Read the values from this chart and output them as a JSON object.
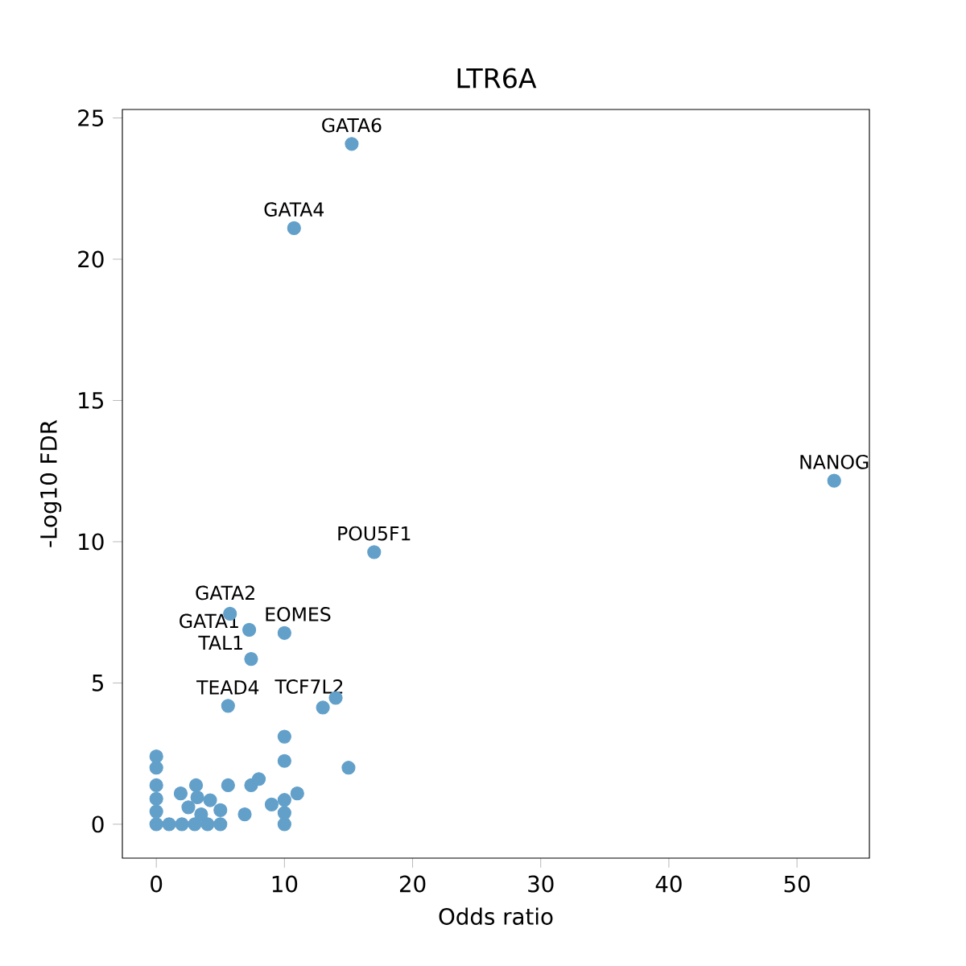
{
  "chart_data": {
    "type": "scatter",
    "title": "LTR6A",
    "xlabel": "Odds ratio",
    "ylabel": "-Log10 FDR",
    "color": "#62a0ca",
    "marker": "circle",
    "xlim": [
      -2.65,
      55.65
    ],
    "ylim": [
      -1.2,
      25.3
    ],
    "xticks": [
      0,
      10,
      20,
      30,
      40,
      50
    ],
    "yticks": [
      0,
      5,
      10,
      15,
      20,
      25
    ],
    "x": [
      15.25,
      10.75,
      52.9,
      17.0,
      5.75,
      7.25,
      10.0,
      7.4,
      5.6,
      13.0,
      14.0,
      10.0,
      10.0,
      15.0,
      0,
      0,
      0,
      0,
      0,
      0,
      1,
      2,
      3,
      4,
      5,
      2.5,
      3.2,
      3.5,
      4.2,
      5.0,
      1.9,
      3.1,
      5.6,
      6.9,
      7.4,
      8.0,
      9.0,
      10.0,
      10.0,
      10.0,
      11.0
    ],
    "values": [
      24.08,
      21.1,
      12.16,
      9.63,
      7.45,
      6.88,
      6.77,
      5.85,
      4.19,
      4.13,
      4.47,
      3.1,
      2.24,
      2.0,
      0,
      0.45,
      0.9,
      1.38,
      2.0,
      2.4,
      0,
      0,
      0,
      0,
      0,
      0.6,
      0.95,
      0.35,
      0.85,
      0.5,
      1.09,
      1.38,
      1.38,
      0.35,
      1.38,
      1.6,
      0.7,
      0,
      0.4,
      0.86,
      1.09
    ],
    "annotations": [
      {
        "text": "GATA6",
        "x": 15.25,
        "y": 24.08
      },
      {
        "text": "GATA4",
        "x": 10.75,
        "y": 21.1
      },
      {
        "text": "NANOG",
        "x": 52.9,
        "y": 12.16
      },
      {
        "text": "POU5F1",
        "x": 17.0,
        "y": 9.63
      },
      {
        "text": "GATA2",
        "x": 5.75,
        "y": 7.45
      },
      {
        "text": "GATA1",
        "x": 7.25,
        "y": 6.88
      },
      {
        "text": "EOMES",
        "x": 10.0,
        "y": 6.77
      },
      {
        "text": "TAL1",
        "x": 7.4,
        "y": 5.85
      },
      {
        "text": "TEAD4",
        "x": 5.6,
        "y": 4.19
      },
      {
        "text": "TCF7L2",
        "x": 13.0,
        "y": 4.13
      }
    ]
  }
}
